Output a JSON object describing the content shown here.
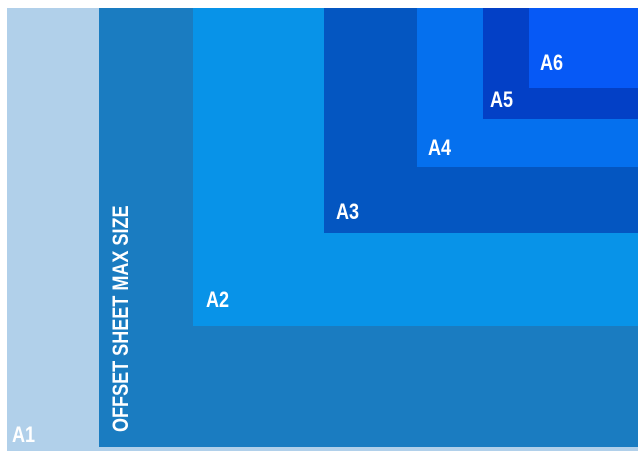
{
  "sheets": [
    {
      "id": "a1",
      "label": "A1",
      "color": "#b1d0ea"
    },
    {
      "id": "offset",
      "label": "OFFSET SHEET MAX SIZE",
      "color": "#1a7cc1"
    },
    {
      "id": "a2",
      "label": "A2",
      "color": "#0893e8"
    },
    {
      "id": "a3",
      "label": "A3",
      "color": "#0456c1"
    },
    {
      "id": "a4",
      "label": "A4",
      "color": "#0570ee"
    },
    {
      "id": "a5",
      "label": "A5",
      "color": "#0340c6"
    },
    {
      "id": "a6",
      "label": "A6",
      "color": "#0659f6"
    }
  ]
}
